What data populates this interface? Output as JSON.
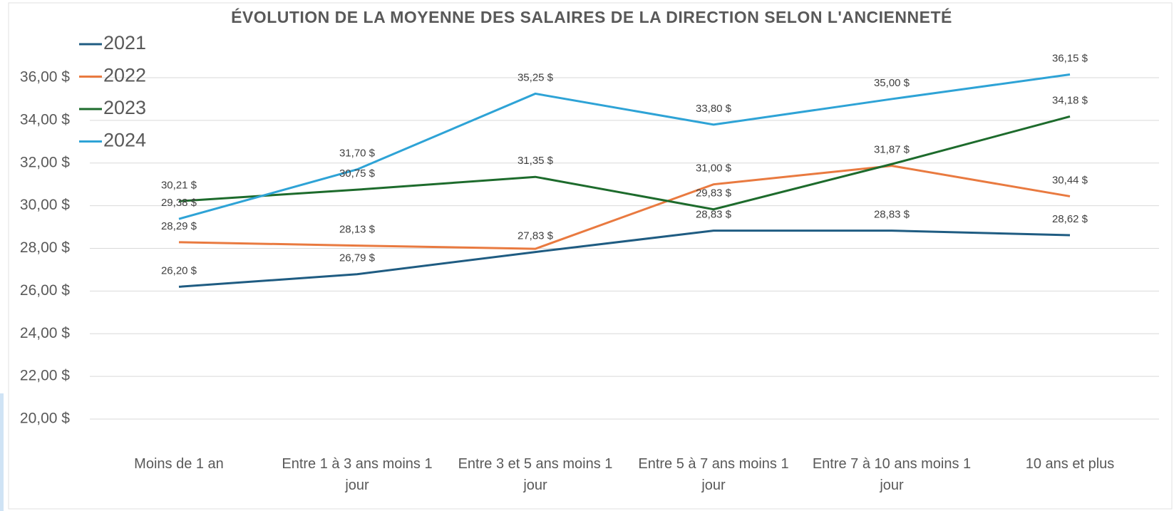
{
  "chart_data": {
    "type": "line",
    "title": "ÉVOLUTION DE LA MOYENNE DES SALAIRES DE LA DIRECTION SELON L'ANCIENNETÉ",
    "categories": [
      "Moins de 1 an",
      "Entre 1 à 3 ans moins 1 jour",
      "Entre 3 et 5 ans moins 1 jour",
      "Entre 5 à 7 ans moins 1 jour",
      "Entre 7 à 10 ans moins 1 jour",
      "10 ans et plus"
    ],
    "series": [
      {
        "name": "2021",
        "color": "#1f5c82",
        "values": [
          26.2,
          26.79,
          27.83,
          28.83,
          28.83,
          28.62
        ],
        "value_labels": [
          "26,20 $",
          "26,79 $",
          "27,83 $",
          "28,83 $",
          "28,83 $",
          "28,62 $"
        ]
      },
      {
        "name": "2022",
        "color": "#e97a40",
        "values": [
          28.29,
          28.13,
          27.98,
          31.0,
          31.87,
          30.44
        ],
        "value_labels": [
          "28,29 $",
          "28,13 $",
          null,
          "31,00 $",
          "31,87 $",
          "30,44 $"
        ]
      },
      {
        "name": "2023",
        "color": "#1d6b2c",
        "values": [
          30.21,
          30.75,
          31.35,
          29.83,
          31.95,
          34.18
        ],
        "value_labels": [
          "30,21 $",
          "30,75 $",
          "31,35 $",
          "29,83 $",
          null,
          "34,18 $"
        ]
      },
      {
        "name": "2024",
        "color": "#2ea3d6",
        "values": [
          29.38,
          31.7,
          35.25,
          33.8,
          35.0,
          36.15
        ],
        "value_labels": [
          "29,38 $",
          "31,70 $",
          "35,25 $",
          "33,80 $",
          "35,00 $",
          "36,15 $"
        ]
      }
    ],
    "ylim": [
      20,
      37.6
    ],
    "yticks": [
      {
        "value": 20,
        "label": "20,00 $"
      },
      {
        "value": 22,
        "label": "22,00 $"
      },
      {
        "value": 24,
        "label": "24,00 $"
      },
      {
        "value": 26,
        "label": "26,00 $"
      },
      {
        "value": 28,
        "label": "28,00 $"
      },
      {
        "value": 30,
        "label": "30,00 $"
      },
      {
        "value": 32,
        "label": "32,00 $"
      },
      {
        "value": 34,
        "label": "34,00 $"
      },
      {
        "value": 36,
        "label": "36,00 $"
      }
    ],
    "grid": true,
    "legend": "upper left"
  }
}
